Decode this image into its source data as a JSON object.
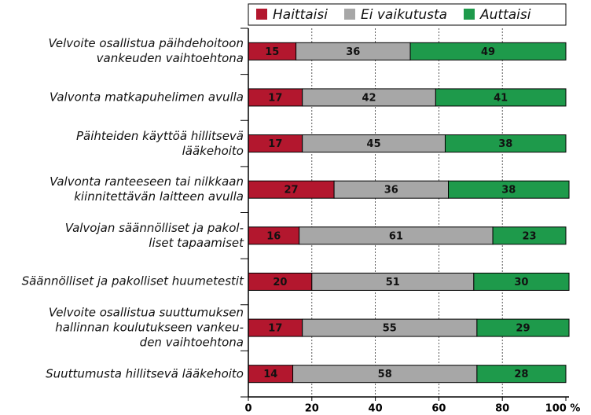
{
  "chart_data": {
    "type": "stacked_barh",
    "categories": [
      "Velvoite osallistua päihdehoitoon\nvankeuden vaihtoehtona",
      "Valvonta matkapuhelimen avulla",
      "Päihteiden käyttöä hillitsevä\nlääkehoito",
      "Valvonta ranteeseen tai nilkkaan\nkiinnitettävän laitteen avulla",
      "Valvojan säännölliset ja pakol-\nliset tapaamiset",
      "Säännölliset ja pakolliset huumetestit",
      "Velvoite osallistua suuttumuksen\nhallinnan koulutukseen vankeu-\nden vaihtoehtona",
      "Suuttumusta hillitsevä lääkehoito"
    ],
    "series": [
      {
        "name": "Haittaisi",
        "color": "#b3172e",
        "values": [
          15,
          17,
          17,
          27,
          16,
          20,
          17,
          14
        ]
      },
      {
        "name": "Ei vaikutusta",
        "color": "#a7a7a7",
        "values": [
          36,
          42,
          45,
          36,
          61,
          51,
          55,
          58
        ]
      },
      {
        "name": "Auttaisi",
        "color": "#1e9a4b",
        "values": [
          49,
          41,
          38,
          38,
          23,
          30,
          29,
          28
        ]
      }
    ],
    "xlim": [
      0,
      100
    ],
    "xticks": [
      0,
      20,
      40,
      60,
      80,
      {
        "value": 100,
        "label": "100 %"
      }
    ],
    "grid": true,
    "legend": "top"
  }
}
